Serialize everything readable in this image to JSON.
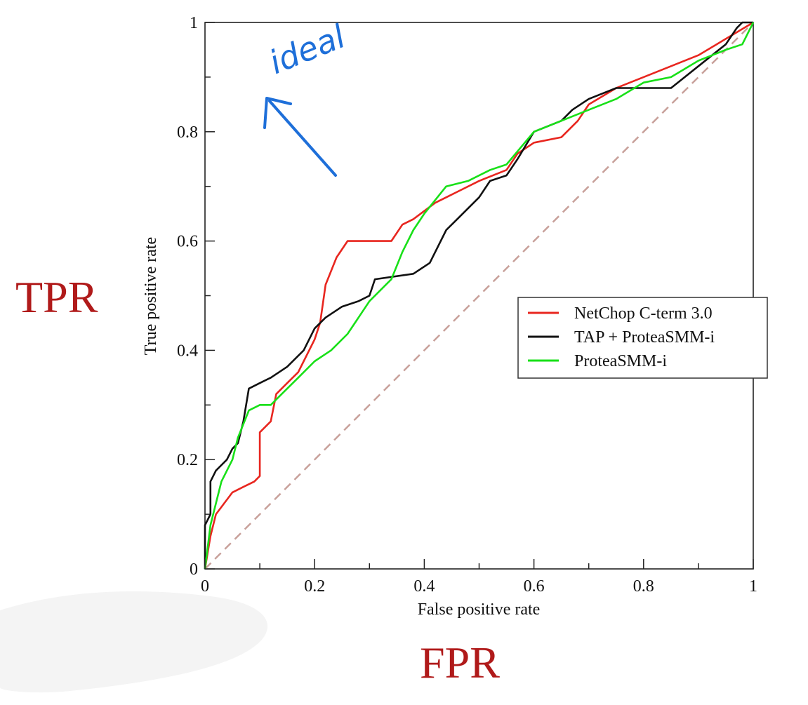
{
  "chart_data": {
    "type": "line",
    "xlabel": "False positive rate",
    "ylabel": "True positive rate",
    "xlim": [
      0,
      1
    ],
    "ylim": [
      0,
      1
    ],
    "x_ticks": [
      "0",
      "0.2",
      "0.4",
      "0.6",
      "0.8",
      "1"
    ],
    "y_ticks": [
      "0",
      "0.2",
      "0.4",
      "0.6",
      "0.8",
      "1"
    ],
    "legend_position": "right",
    "grid": false,
    "series": [
      {
        "name": "NetChop C-term 3.0",
        "color": "#e8261f",
        "points": [
          [
            0,
            0
          ],
          [
            0.01,
            0.06
          ],
          [
            0.02,
            0.1
          ],
          [
            0.05,
            0.14
          ],
          [
            0.07,
            0.15
          ],
          [
            0.09,
            0.16
          ],
          [
            0.1,
            0.17
          ],
          [
            0.1,
            0.25
          ],
          [
            0.12,
            0.27
          ],
          [
            0.13,
            0.32
          ],
          [
            0.15,
            0.34
          ],
          [
            0.17,
            0.36
          ],
          [
            0.18,
            0.38
          ],
          [
            0.19,
            0.4
          ],
          [
            0.2,
            0.42
          ],
          [
            0.21,
            0.45
          ],
          [
            0.22,
            0.52
          ],
          [
            0.24,
            0.57
          ],
          [
            0.26,
            0.6
          ],
          [
            0.3,
            0.6
          ],
          [
            0.34,
            0.6
          ],
          [
            0.36,
            0.63
          ],
          [
            0.38,
            0.64
          ],
          [
            0.42,
            0.67
          ],
          [
            0.46,
            0.69
          ],
          [
            0.5,
            0.71
          ],
          [
            0.55,
            0.73
          ],
          [
            0.57,
            0.76
          ],
          [
            0.6,
            0.78
          ],
          [
            0.65,
            0.79
          ],
          [
            0.68,
            0.82
          ],
          [
            0.7,
            0.85
          ],
          [
            0.75,
            0.88
          ],
          [
            0.8,
            0.9
          ],
          [
            0.85,
            0.92
          ],
          [
            0.9,
            0.94
          ],
          [
            0.95,
            0.97
          ],
          [
            1,
            1
          ]
        ]
      },
      {
        "name": "TAP + ProteaSMM-i",
        "color": "#111111",
        "points": [
          [
            0,
            0
          ],
          [
            0,
            0.08
          ],
          [
            0.01,
            0.1
          ],
          [
            0.01,
            0.16
          ],
          [
            0.02,
            0.18
          ],
          [
            0.03,
            0.19
          ],
          [
            0.04,
            0.2
          ],
          [
            0.05,
            0.22
          ],
          [
            0.06,
            0.23
          ],
          [
            0.07,
            0.27
          ],
          [
            0.08,
            0.33
          ],
          [
            0.1,
            0.34
          ],
          [
            0.12,
            0.35
          ],
          [
            0.15,
            0.37
          ],
          [
            0.18,
            0.4
          ],
          [
            0.2,
            0.44
          ],
          [
            0.22,
            0.46
          ],
          [
            0.25,
            0.48
          ],
          [
            0.28,
            0.49
          ],
          [
            0.3,
            0.5
          ],
          [
            0.31,
            0.53
          ],
          [
            0.38,
            0.54
          ],
          [
            0.41,
            0.56
          ],
          [
            0.44,
            0.62
          ],
          [
            0.46,
            0.64
          ],
          [
            0.5,
            0.68
          ],
          [
            0.52,
            0.71
          ],
          [
            0.55,
            0.72
          ],
          [
            0.57,
            0.75
          ],
          [
            0.6,
            0.8
          ],
          [
            0.65,
            0.82
          ],
          [
            0.67,
            0.84
          ],
          [
            0.7,
            0.86
          ],
          [
            0.75,
            0.88
          ],
          [
            0.85,
            0.88
          ],
          [
            0.9,
            0.92
          ],
          [
            0.95,
            0.96
          ],
          [
            0.97,
            0.99
          ],
          [
            0.98,
            1
          ],
          [
            1,
            1
          ]
        ]
      },
      {
        "name": "ProteaSMM-i",
        "color": "#18e018",
        "points": [
          [
            0,
            0
          ],
          [
            0.01,
            0.08
          ],
          [
            0.02,
            0.12
          ],
          [
            0.03,
            0.16
          ],
          [
            0.05,
            0.2
          ],
          [
            0.06,
            0.24
          ],
          [
            0.08,
            0.29
          ],
          [
            0.1,
            0.3
          ],
          [
            0.12,
            0.3
          ],
          [
            0.14,
            0.32
          ],
          [
            0.17,
            0.35
          ],
          [
            0.2,
            0.38
          ],
          [
            0.23,
            0.4
          ],
          [
            0.26,
            0.43
          ],
          [
            0.28,
            0.46
          ],
          [
            0.3,
            0.49
          ],
          [
            0.32,
            0.51
          ],
          [
            0.34,
            0.53
          ],
          [
            0.36,
            0.58
          ],
          [
            0.38,
            0.62
          ],
          [
            0.4,
            0.65
          ],
          [
            0.44,
            0.7
          ],
          [
            0.48,
            0.71
          ],
          [
            0.52,
            0.73
          ],
          [
            0.55,
            0.74
          ],
          [
            0.6,
            0.8
          ],
          [
            0.65,
            0.82
          ],
          [
            0.7,
            0.84
          ],
          [
            0.75,
            0.86
          ],
          [
            0.8,
            0.89
          ],
          [
            0.85,
            0.9
          ],
          [
            0.9,
            0.93
          ],
          [
            0.95,
            0.95
          ],
          [
            0.98,
            0.96
          ],
          [
            1,
            1
          ]
        ]
      }
    ],
    "reference_line": {
      "points": [
        [
          0,
          0
        ],
        [
          1,
          1
        ]
      ],
      "color": "#c8a09a",
      "style": "dashed"
    }
  },
  "annotations": {
    "tpr_label": "TPR",
    "fpr_label": "FPR",
    "handwritten_note": "ideal"
  }
}
